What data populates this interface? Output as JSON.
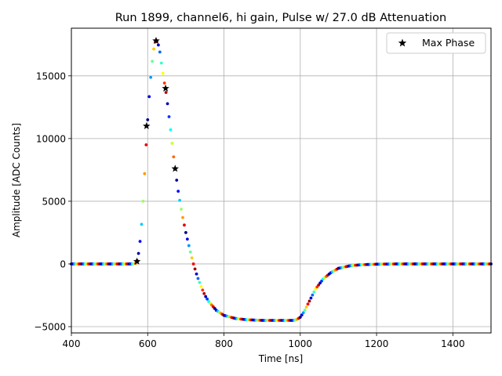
{
  "chart_data": {
    "type": "scatter",
    "title": "Run 1899, channel6, hi gain, Pulse w/ 27.0 dB Attenuation",
    "xlabel": "Time [ns]",
    "ylabel": "Amplitude [ADC Counts]",
    "xlim": [
      400,
      1500
    ],
    "ylim": [
      -5500,
      18800
    ],
    "xticks": [
      400,
      600,
      800,
      1000,
      1200,
      1400
    ],
    "yticks": [
      -5000,
      0,
      5000,
      10000,
      15000
    ],
    "xtick_labels": [
      "400",
      "600",
      "800",
      "1000",
      "1200",
      "1400"
    ],
    "ytick_labels": [
      "−5000",
      "0",
      "5000",
      "10000",
      "15000"
    ],
    "grid": true,
    "legend": {
      "placement": "top-right",
      "entries": [
        "Max Phase"
      ]
    },
    "colormap": "jet",
    "colormap_stops": [
      "#000080",
      "#0000ff",
      "#00ffff",
      "#ffff00",
      "#ff0000",
      "#800000"
    ],
    "waveform": {
      "x": [
        400,
        560,
        570,
        575,
        580,
        585,
        590,
        595,
        600,
        605,
        610,
        615,
        620,
        623,
        627,
        632,
        637,
        642,
        650,
        660,
        670,
        680,
        690,
        700,
        710,
        720,
        730,
        740,
        750,
        760,
        780,
        800,
        830,
        860,
        900,
        940,
        980,
        990,
        1000,
        1010,
        1020,
        1030,
        1040,
        1060,
        1080,
        1100,
        1130,
        1160,
        1200,
        1250,
        1300,
        1400,
        1500
      ],
      "y": [
        0,
        0,
        50,
        600,
        1800,
        3500,
        6000,
        9000,
        11500,
        13800,
        15600,
        17000,
        17700,
        17800,
        17600,
        16900,
        15800,
        14800,
        13300,
        10700,
        8000,
        5800,
        4000,
        2500,
        1200,
        0,
        -1000,
        -1800,
        -2500,
        -3000,
        -3700,
        -4100,
        -4350,
        -4450,
        -4500,
        -4500,
        -4500,
        -4450,
        -4250,
        -3800,
        -3200,
        -2600,
        -2000,
        -1200,
        -700,
        -350,
        -150,
        -60,
        -20,
        0,
        0,
        0,
        0
      ],
      "markers_per_ns": 0.25
    },
    "series": [
      {
        "name": "Max Phase",
        "marker": "star",
        "color": "#000000",
        "points": [
          {
            "x": 572,
            "y": 200
          },
          {
            "x": 597,
            "y": 11000
          },
          {
            "x": 622,
            "y": 17800
          },
          {
            "x": 647,
            "y": 14000
          },
          {
            "x": 672,
            "y": 7600
          }
        ]
      }
    ]
  }
}
